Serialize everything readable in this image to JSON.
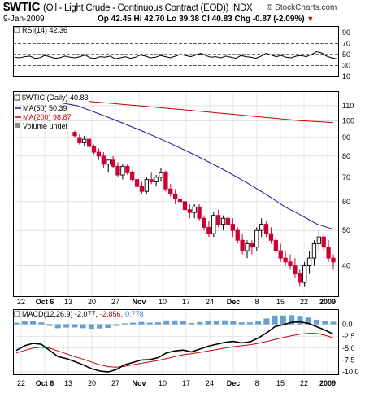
{
  "header": {
    "symbol": "$WTIC",
    "name": "(Oil - Light Crude - Continuous Contract (EOD)) INDX",
    "brand": "© StockCharts.com",
    "date": "9-Jan-2009",
    "quote": {
      "open": "Op 42.45",
      "high": "Hi 42.70",
      "low": "Lo 39.38",
      "close": "Cl 40.83",
      "change": "Chg -0.87 (-2.09%)"
    }
  },
  "colors": {
    "price_up": "#000000",
    "price_down": "#cc0033",
    "ma50": "#1a1a99",
    "ma200": "#cc0000",
    "macd_line": "#000000",
    "signal_line": "#cc0000",
    "histogram": "#4a90c8",
    "grid": "#cccccc"
  },
  "legends": {
    "rsi": "RSI(14) 42.36",
    "price": "$WTIC (Daily) 40.83",
    "ma50": "MA(50) 50.39",
    "ma200": "MA(200) 98.87",
    "volume": "Volume undef",
    "macd_prefix": "MACD(12,26,9) -2.077,",
    "macd_signal": "-2.856,",
    "macd_hist": "0.778"
  },
  "chart_data": [
    {
      "type": "line",
      "panel": "RSI",
      "ylim": [
        10,
        100
      ],
      "y_ticks": [
        "90",
        "70",
        "50",
        "30",
        "10"
      ],
      "reference_lines": [
        70,
        50,
        30
      ],
      "series": [
        {
          "name": "RSI(14)",
          "values": [
            45,
            44,
            46,
            47,
            43,
            44,
            48,
            46,
            43,
            44,
            47,
            45,
            44,
            46,
            49,
            44,
            43,
            46,
            45,
            47,
            42,
            44,
            46,
            43,
            45,
            49,
            47,
            44,
            45,
            48,
            46,
            44,
            47,
            50,
            48,
            46,
            49,
            52,
            48,
            45,
            46,
            44,
            47,
            45,
            43,
            48,
            46,
            45,
            43,
            47,
            52,
            49,
            46,
            48,
            45,
            44,
            47,
            48,
            46,
            50,
            55,
            53,
            47,
            44,
            42
          ]
        }
      ]
    },
    {
      "type": "candlestick",
      "panel": "Price",
      "y_scale": "log",
      "ylim": [
        33,
        120
      ],
      "y_ticks": [
        "110",
        "100",
        "90",
        "80",
        "70",
        "60",
        "50",
        "40"
      ],
      "x_tick_labels": [
        "22",
        "Oct 6",
        "13",
        "20",
        "27",
        "Nov",
        "10",
        "17",
        "24",
        "Dec",
        "8",
        "15",
        "22",
        "2009"
      ],
      "ohlc": [
        [
          93,
          94,
          90,
          91
        ],
        [
          90,
          92,
          86,
          87
        ],
        [
          87,
          91,
          85,
          89
        ],
        [
          89,
          90,
          84,
          85
        ],
        [
          85,
          86,
          81,
          82
        ],
        [
          82,
          84,
          78,
          80
        ],
        [
          80,
          82,
          74,
          76
        ],
        [
          76,
          78,
          72,
          78
        ],
        [
          78,
          80,
          74,
          75
        ],
        [
          75,
          77,
          70,
          71
        ],
        [
          71,
          76,
          69,
          75
        ],
        [
          75,
          76,
          71,
          72
        ],
        [
          72,
          73,
          68,
          69
        ],
        [
          69,
          71,
          65,
          66
        ],
        [
          66,
          68,
          63,
          64
        ],
        [
          64,
          70,
          63,
          69
        ],
        [
          69,
          72,
          67,
          68
        ],
        [
          68,
          71,
          66,
          70
        ],
        [
          70,
          74,
          68,
          72
        ],
        [
          72,
          73,
          64,
          65
        ],
        [
          65,
          67,
          62,
          63
        ],
        [
          63,
          65,
          59,
          61
        ],
        [
          61,
          64,
          58,
          60
        ],
        [
          60,
          62,
          56,
          57
        ],
        [
          57,
          59,
          54,
          56
        ],
        [
          56,
          59,
          54,
          58
        ],
        [
          58,
          59,
          53,
          54
        ],
        [
          54,
          55,
          50,
          51
        ],
        [
          51,
          53,
          48,
          49
        ],
        [
          49,
          56,
          48,
          55
        ],
        [
          55,
          57,
          51,
          52
        ],
        [
          52,
          55,
          50,
          54
        ],
        [
          54,
          56,
          51,
          52
        ],
        [
          52,
          54,
          48,
          50
        ],
        [
          50,
          51,
          46,
          47
        ],
        [
          47,
          49,
          43,
          44
        ],
        [
          44,
          47,
          42,
          46
        ],
        [
          46,
          47,
          43,
          45
        ],
        [
          45,
          51,
          44,
          50
        ],
        [
          50,
          54,
          48,
          52
        ],
        [
          52,
          53,
          48,
          49
        ],
        [
          49,
          51,
          46,
          47
        ],
        [
          47,
          48,
          43,
          44
        ],
        [
          44,
          46,
          41,
          42
        ],
        [
          42,
          44,
          40,
          41
        ],
        [
          41,
          43,
          39,
          40
        ],
        [
          40,
          42,
          37,
          38
        ],
        [
          38,
          39,
          35,
          36
        ],
        [
          36,
          41,
          35,
          40
        ],
        [
          40,
          44,
          38,
          42
        ],
        [
          42,
          47,
          40,
          46
        ],
        [
          46,
          50,
          44,
          48
        ],
        [
          48,
          49,
          44,
          45
        ],
        [
          45,
          47,
          41,
          42
        ],
        [
          42,
          43,
          39,
          41
        ]
      ],
      "series": [
        {
          "name": "MA(50)",
          "values": [
            112,
            110,
            106,
            102,
            98,
            94,
            90,
            86,
            82,
            78,
            74,
            70,
            66,
            62,
            58,
            55,
            52,
            50.4
          ]
        },
        {
          "name": "MA(200)",
          "values": [
            113,
            112,
            111,
            110,
            109,
            108,
            107,
            106,
            105,
            104,
            103,
            102,
            101,
            100,
            99.5,
            98.87
          ]
        }
      ]
    },
    {
      "type": "line",
      "panel": "MACD",
      "ylim": [
        -10.5,
        3
      ],
      "y_ticks": [
        "0.0",
        "-2.5",
        "-5.0",
        "-7.5",
        "-10.0"
      ],
      "series": [
        {
          "name": "MACD",
          "values": [
            -5.5,
            -4.5,
            -4.0,
            -4.2,
            -5.5,
            -6.8,
            -7.2,
            -7.8,
            -8.5,
            -9.3,
            -9.8,
            -10.0,
            -9.5,
            -8.5,
            -8.0,
            -7.5,
            -7.4,
            -7.0,
            -6.0,
            -5.6,
            -5.4,
            -5.8,
            -5.2,
            -4.6,
            -4.2,
            -3.8,
            -3.6,
            -3.9,
            -3.7,
            -2.9,
            -1.8,
            -0.5,
            -0.1,
            0.4,
            0.5,
            0.2,
            -0.5,
            -1.2,
            -2.077
          ]
        },
        {
          "name": "Signal",
          "values": [
            -6.0,
            -5.5,
            -5.0,
            -4.8,
            -5.0,
            -5.6,
            -6.2,
            -6.8,
            -7.3,
            -7.9,
            -8.5,
            -8.9,
            -9.0,
            -8.8,
            -8.5,
            -8.2,
            -7.9,
            -7.6,
            -7.2,
            -6.8,
            -6.4,
            -6.2,
            -5.9,
            -5.6,
            -5.3,
            -5.0,
            -4.7,
            -4.5,
            -4.3,
            -4.0,
            -3.6,
            -3.2,
            -2.8,
            -2.4,
            -2.1,
            -1.9,
            -1.9,
            -2.3,
            -2.856
          ]
        },
        {
          "name": "Histogram",
          "values": [
            0.5,
            1.0,
            1.0,
            0.6,
            -0.5,
            -1.2,
            -1.0,
            -1.0,
            -1.2,
            -1.4,
            -1.3,
            -1.1,
            -0.5,
            0.3,
            0.5,
            0.7,
            0.5,
            0.6,
            1.2,
            1.2,
            1.0,
            0.4,
            0.7,
            1.0,
            1.1,
            1.2,
            1.1,
            0.6,
            0.6,
            1.1,
            1.8,
            2.7,
            2.7,
            2.8,
            2.6,
            2.1,
            1.4,
            1.1,
            0.778
          ]
        }
      ]
    }
  ]
}
